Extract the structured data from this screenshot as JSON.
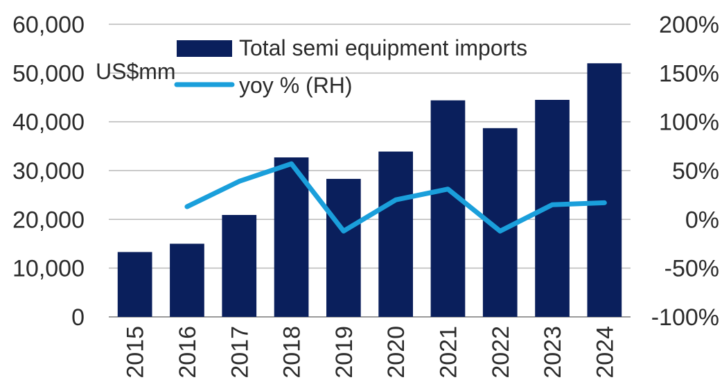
{
  "chart_data": {
    "type": "bar",
    "categories": [
      "2015",
      "2016",
      "2017",
      "2018",
      "2019",
      "2020",
      "2021",
      "2022",
      "2023",
      "2024"
    ],
    "series": [
      {
        "name": "Total semi equipment imports",
        "type": "bar",
        "axis": "left",
        "values": [
          13300,
          15000,
          20900,
          32700,
          28300,
          33900,
          44400,
          38700,
          44500,
          52000
        ]
      },
      {
        "name": "yoy % (RH)",
        "type": "line",
        "axis": "right",
        "values": [
          null,
          13,
          39,
          57,
          -12,
          20,
          31,
          -12,
          15,
          17
        ]
      }
    ],
    "title": "",
    "xlabel": "",
    "ylabel": "US$mm",
    "ylabel_right": "",
    "ylim": [
      0,
      60000
    ],
    "ylim_right": [
      -100,
      200
    ],
    "yticks": [
      "0",
      "10,000",
      "20,000",
      "30,000",
      "40,000",
      "50,000",
      "60,000"
    ],
    "yticks_right": [
      "-100%",
      "-50%",
      "0%",
      "50%",
      "100%",
      "150%",
      "200%"
    ],
    "grid": true,
    "legend_position": "top-left",
    "colors": {
      "bar": "#0a1f5c",
      "line": "#1a9fdb",
      "grid": "#b8b8b8",
      "text": "#2b2b2b"
    }
  }
}
